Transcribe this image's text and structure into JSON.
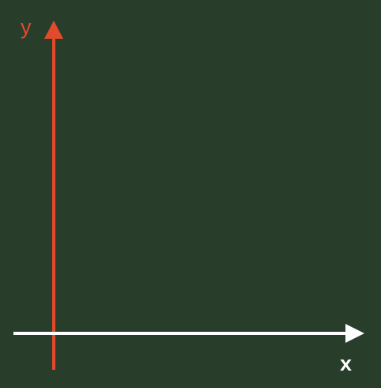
{
  "background_color": "#283d2a",
  "axes": {
    "x": {
      "label": "x",
      "color": "#ffffff"
    },
    "y": {
      "label": "y",
      "color": "#e24a2c"
    }
  }
}
